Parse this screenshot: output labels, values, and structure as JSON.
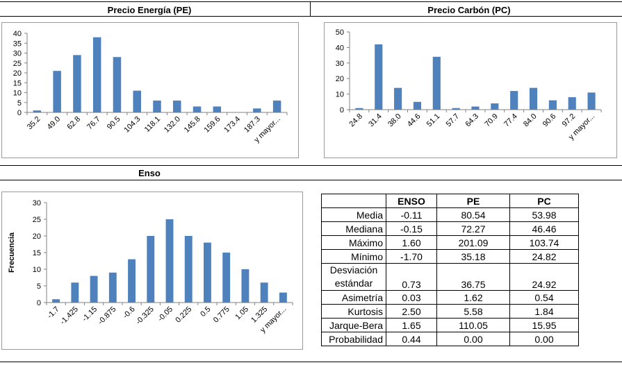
{
  "headers": {
    "pe": "Precio Energía (PE)",
    "pc": "Precio Carbón (PC)",
    "enso": "Enso"
  },
  "chart_data": [
    {
      "type": "bar",
      "title": "Precio Energía (PE)",
      "categories": [
        "35.2",
        "49.0",
        "62.8",
        "76.7",
        "90.5",
        "104.3",
        "118.1",
        "132.0",
        "145.8",
        "159.6",
        "173.4",
        "187.3",
        "y mayor..."
      ],
      "values": [
        1,
        21,
        29,
        38,
        28,
        11,
        6,
        6,
        3,
        3,
        0,
        2,
        6
      ],
      "ylim": [
        0,
        40
      ],
      "yticks": [
        0,
        5,
        10,
        15,
        20,
        25,
        30,
        35,
        40
      ],
      "ylabel": "",
      "color": "#4f81bd"
    },
    {
      "type": "bar",
      "title": "Precio Carbón (PC)",
      "categories": [
        "24.8",
        "31.4",
        "38.0",
        "44.6",
        "51.1",
        "57.7",
        "64.3",
        "70.9",
        "77.4",
        "84.0",
        "90.6",
        "97.2",
        "y mayor..."
      ],
      "values": [
        1,
        42,
        14,
        5,
        34,
        1,
        2,
        4,
        12,
        14,
        6,
        8,
        11
      ],
      "ylim": [
        0,
        50
      ],
      "yticks": [
        0,
        10,
        20,
        30,
        40,
        50
      ],
      "ylabel": "",
      "color": "#4f81bd"
    },
    {
      "type": "bar",
      "title": "Enso",
      "categories": [
        "-1.7",
        "-1.425",
        "-1.15",
        "-0.875",
        "-0.6",
        "-0.325",
        "-0.05",
        "0.225",
        "0.5",
        "0.775",
        "1.05",
        "1.325",
        "y mayor..."
      ],
      "values": [
        1,
        6,
        8,
        9,
        13,
        20,
        25,
        20,
        18,
        15,
        10,
        6,
        3
      ],
      "ylim": [
        0,
        30
      ],
      "yticks": [
        0,
        5,
        10,
        15,
        20,
        25,
        30
      ],
      "ylabel": "Frecuencia",
      "color": "#4f81bd"
    }
  ],
  "stats_table": {
    "columns": [
      "ENSO",
      "PE",
      "PC"
    ],
    "rows": [
      {
        "label": "Media",
        "values": [
          "-0.11",
          "80.54",
          "53.98"
        ]
      },
      {
        "label": "Mediana",
        "values": [
          "-0.15",
          "72.27",
          "46.46"
        ]
      },
      {
        "label": "Máximo",
        "values": [
          "1.60",
          "201.09",
          "103.74"
        ]
      },
      {
        "label": "Mínimo",
        "values": [
          "-1.70",
          "35.18",
          "24.82"
        ]
      },
      {
        "label": "Desviación estándar",
        "label_line1": "Desviación",
        "label_line2": "estándar",
        "values": [
          "0.73",
          "36.75",
          "24.92"
        ]
      },
      {
        "label": "Asimetría",
        "values": [
          "0.03",
          "1.62",
          "0.54"
        ]
      },
      {
        "label": "Kurtosis",
        "values": [
          "2.50",
          "5.58",
          "1.84"
        ]
      },
      {
        "label": "Jarque-Bera",
        "values": [
          "1.65",
          "110.05",
          "15.95"
        ]
      },
      {
        "label": "Probabilidad",
        "values": [
          "0.44",
          "0.00",
          "0.00"
        ]
      }
    ]
  }
}
